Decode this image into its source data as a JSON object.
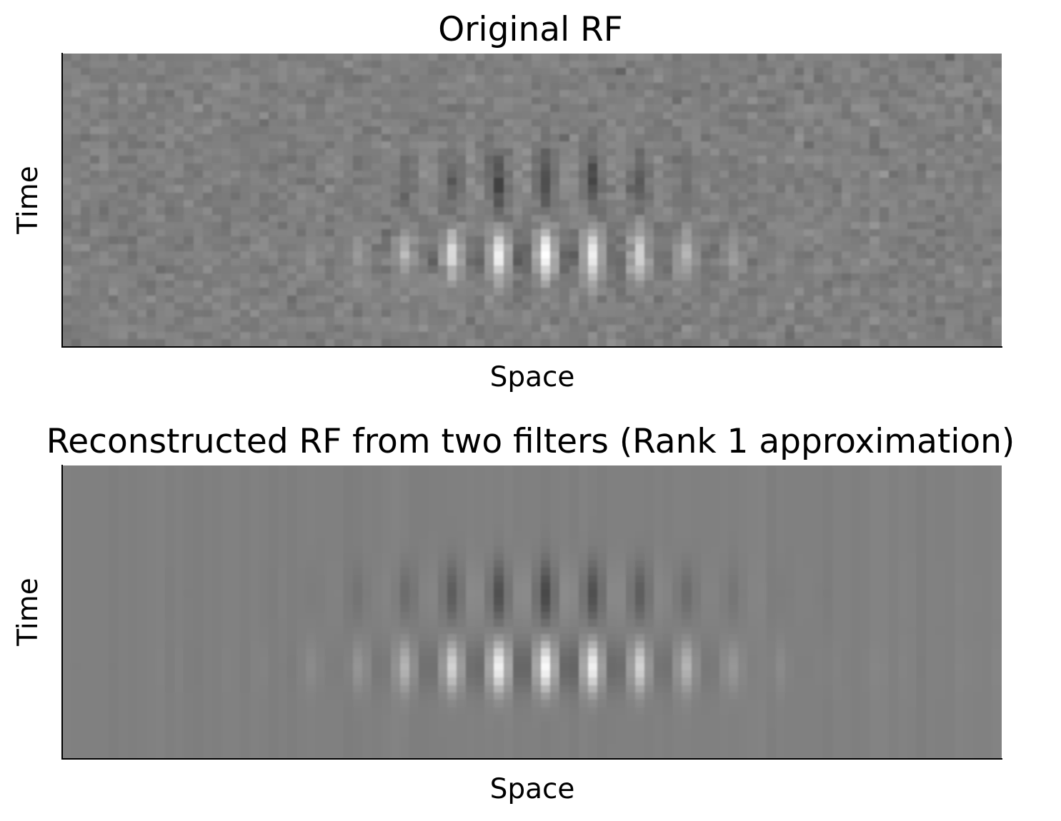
{
  "chart_data": [
    {
      "type": "heatmap",
      "title": "Original RF",
      "xlabel": "Space",
      "ylabel": "Time",
      "colormap": "gray",
      "grid": false,
      "ticks": false,
      "noise": true,
      "description_of_structure": {
        "space_bins": 100,
        "time_bins": 40,
        "center_space": 51,
        "bar_period": 5,
        "bars": 9,
        "excitatory_peak_time": 27,
        "inhibitory_peak_time": 17
      }
    },
    {
      "type": "heatmap",
      "title": "Reconstructed RF from two filters (Rank 1 approximation)",
      "xlabel": "Space",
      "ylabel": "Time",
      "colormap": "gray",
      "grid": false,
      "ticks": false,
      "noise": false,
      "description_of_structure": {
        "space_bins": 100,
        "time_bins": 40,
        "center_space": 51,
        "bar_period": 5,
        "bars": 9,
        "excitatory_peak_time": 27,
        "inhibitory_peak_time": 17
      }
    }
  ]
}
